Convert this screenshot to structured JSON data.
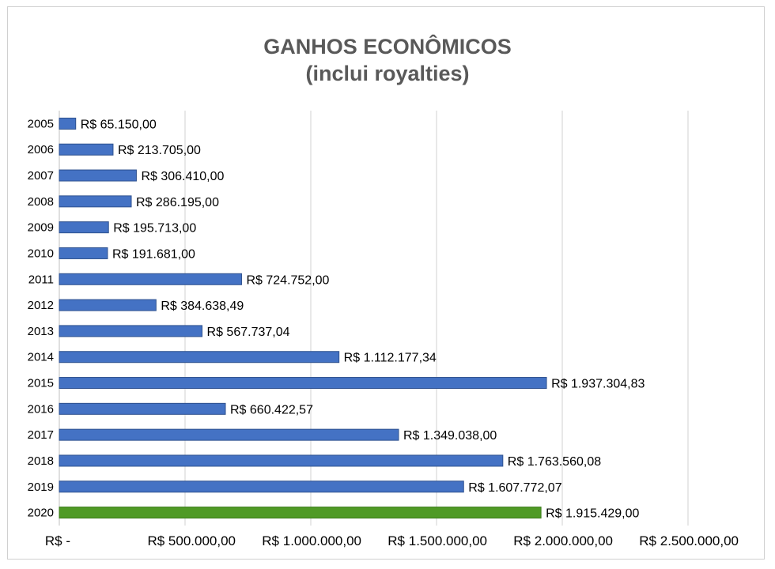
{
  "chart_data": {
    "type": "bar",
    "orientation": "horizontal",
    "title": "GANHOS ECONÔMICOS",
    "subtitle": "(inclui royalties)",
    "categories": [
      "2005",
      "2006",
      "2007",
      "2008",
      "2009",
      "2010",
      "2011",
      "2012",
      "2013",
      "2014",
      "2015",
      "2016",
      "2017",
      "2018",
      "2019",
      "2020"
    ],
    "values": [
      65150.0,
      213705.0,
      306410.0,
      286195.0,
      195713.0,
      191681.0,
      724752.0,
      384638.49,
      567737.04,
      1112177.34,
      1937304.83,
      660422.57,
      1349038.0,
      1763560.08,
      1607772.07,
      1915429.0
    ],
    "data_labels": [
      "R$ 65.150,00",
      "R$ 213.705,00",
      "R$ 306.410,00",
      "R$ 286.195,00",
      "R$ 195.713,00",
      "R$ 191.681,00",
      "R$ 724.752,00",
      "R$ 384.638,49",
      "R$ 567.737,04",
      "R$ 1.112.177,34",
      "R$ 1.937.304,83",
      "R$ 660.422,57",
      "R$ 1.349.038,00",
      "R$ 1.763.560,08",
      "R$ 1.607.772,07",
      "R$ 1.915.429,00"
    ],
    "x_ticks": [
      0,
      500000,
      1000000,
      1500000,
      2000000,
      2500000
    ],
    "x_tick_labels": [
      "R$ -",
      "R$ 500.000,00",
      "R$ 1.000.000,00",
      "R$ 1.500.000,00",
      "R$ 2.000.000,00",
      "R$ 2.500.000,00"
    ],
    "xlim": [
      0,
      2500000
    ],
    "grid": true,
    "legend": "none",
    "colors": {
      "bar": "#4472c4",
      "bar_edge": "#2f528f",
      "highlight_bar": "#4f9a25",
      "highlight_edge": "#3b7a1a",
      "grid": "#d0d0d0",
      "title": "#595959"
    },
    "highlight_category": "2020"
  }
}
